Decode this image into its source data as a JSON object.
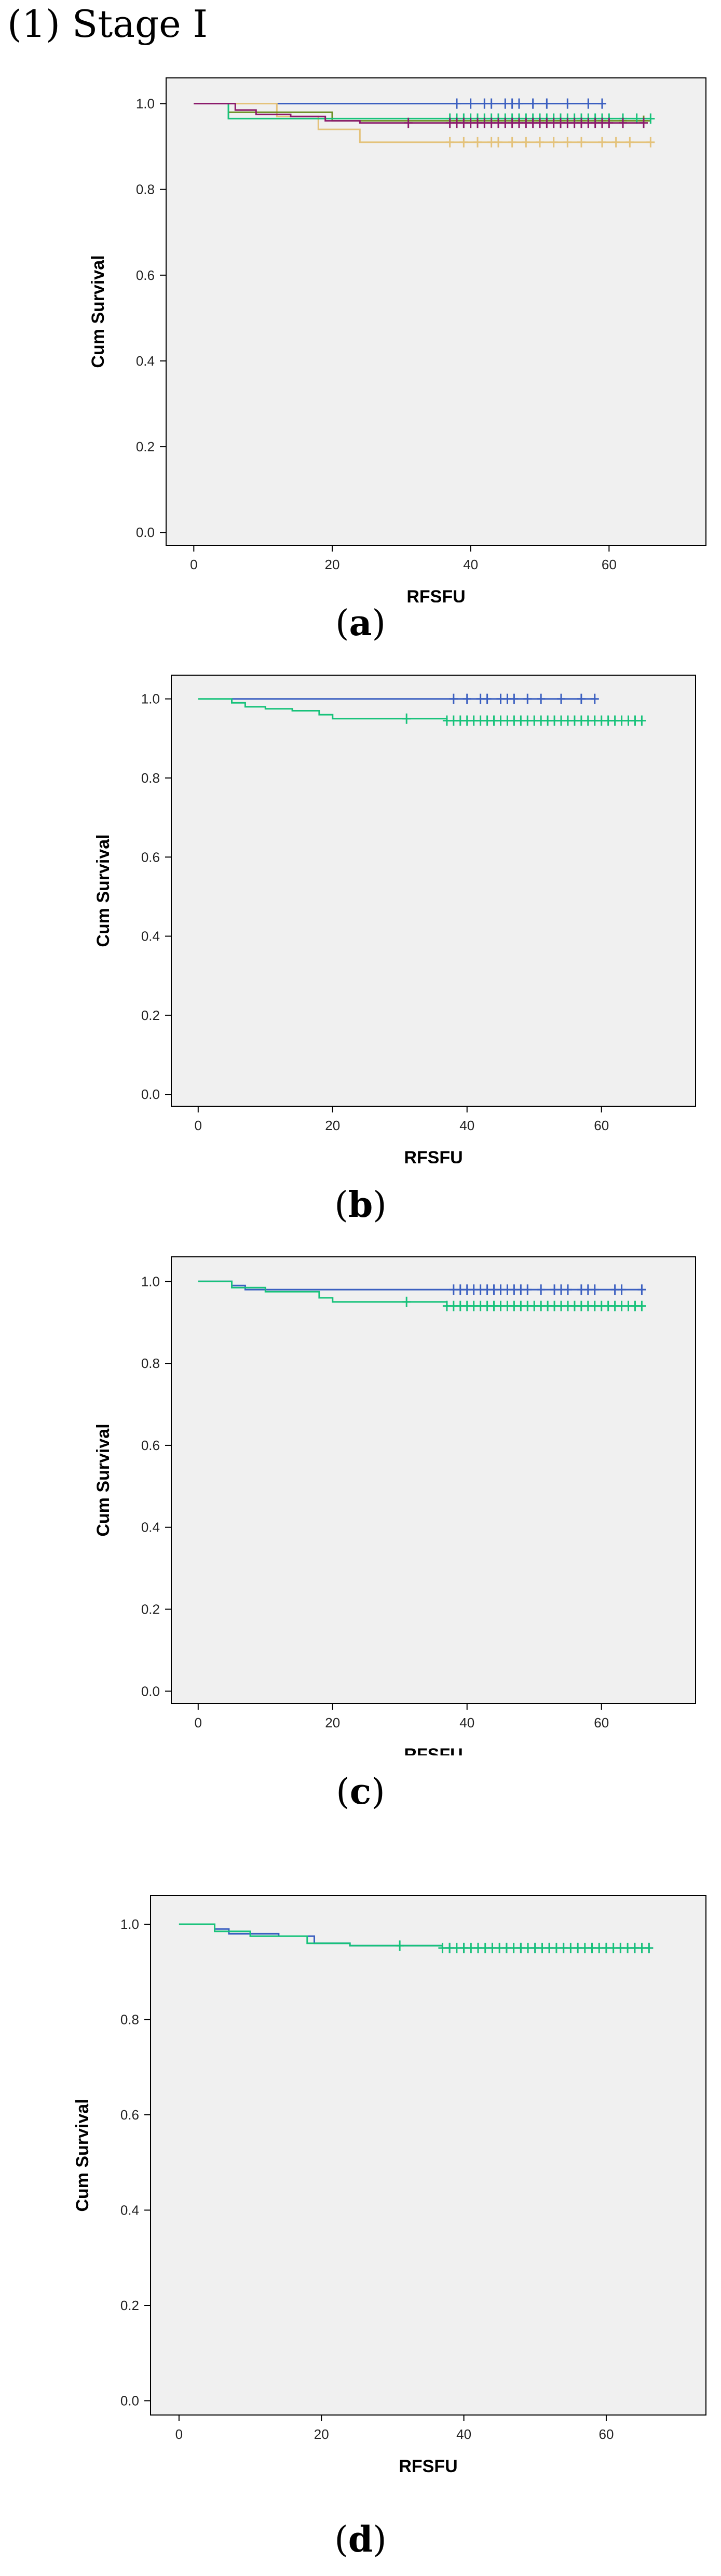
{
  "header": {
    "text": "(1) Stage I"
  },
  "colors": {
    "plot_bg": "#f0f0f0",
    "frame": "#000000",
    "blue": "#3b5fc0",
    "green": "#17c27a",
    "purple": "#8b1a6b",
    "olive": "#6b8e23",
    "tan": "#e4c27a"
  },
  "chart_data": [
    {
      "id": "a",
      "type": "line",
      "caption_letter": "a",
      "xlabel": "RFSFU",
      "ylabel": "Cum Survival",
      "xlim": [
        -4,
        74
      ],
      "ylim": [
        -0.03,
        1.06
      ],
      "xticks": [
        0,
        20,
        40,
        60
      ],
      "yticks": [
        0.0,
        0.2,
        0.4,
        0.6,
        0.8,
        1.0
      ],
      "series": [
        {
          "color": "blue",
          "steps": [
            [
              0,
              1.0
            ],
            [
              59,
              1.0
            ]
          ],
          "censor": [
            38,
            40,
            42,
            43,
            45,
            46,
            47,
            49,
            51,
            54,
            57,
            59
          ]
        },
        {
          "color": "tan",
          "steps": [
            [
              0,
              1.0
            ],
            [
              12,
              1.0
            ],
            [
              12,
              0.97
            ],
            [
              18,
              0.97
            ],
            [
              18,
              0.94
            ],
            [
              24,
              0.94
            ],
            [
              24,
              0.91
            ],
            [
              66,
              0.91
            ]
          ],
          "censor": [
            37,
            39,
            41,
            43,
            44,
            46,
            48,
            50,
            52,
            54,
            56,
            59,
            61,
            63,
            66
          ]
        },
        {
          "color": "olive",
          "steps": [
            [
              0,
              1.0
            ],
            [
              5,
              1.0
            ],
            [
              5,
              0.98
            ],
            [
              20,
              0.98
            ],
            [
              20,
              0.96
            ],
            [
              66,
              0.96
            ]
          ],
          "censor": [
            38,
            41,
            44,
            47,
            50,
            53,
            56,
            59,
            62,
            65
          ]
        },
        {
          "color": "green",
          "steps": [
            [
              0,
              1.0
            ],
            [
              5,
              1.0
            ],
            [
              5,
              0.965
            ],
            [
              66,
              0.965
            ]
          ],
          "censor": [
            37,
            38,
            39,
            40,
            41,
            42,
            43,
            44,
            45,
            46,
            47,
            48,
            49,
            50,
            51,
            52,
            53,
            54,
            55,
            56,
            57,
            58,
            59,
            60,
            62,
            64,
            66
          ]
        },
        {
          "color": "purple",
          "steps": [
            [
              0,
              1.0
            ],
            [
              6,
              1.0
            ],
            [
              6,
              0.985
            ],
            [
              9,
              0.985
            ],
            [
              9,
              0.975
            ],
            [
              14,
              0.975
            ],
            [
              14,
              0.97
            ],
            [
              19,
              0.97
            ],
            [
              19,
              0.96
            ],
            [
              24,
              0.96
            ],
            [
              24,
              0.955
            ],
            [
              65,
              0.955
            ]
          ],
          "censor": [
            31,
            37,
            38,
            39,
            40,
            41,
            42,
            43,
            44,
            45,
            46,
            47,
            48,
            49,
            50,
            51,
            52,
            53,
            54,
            55,
            56,
            57,
            58,
            59,
            60,
            62,
            65
          ]
        }
      ]
    },
    {
      "id": "b",
      "type": "line",
      "caption_letter": "b",
      "xlabel": "RFSFU",
      "ylabel": "Cum Survival",
      "xlim": [
        -4,
        74
      ],
      "ylim": [
        -0.03,
        1.06
      ],
      "xticks": [
        0,
        20,
        40,
        60
      ],
      "yticks": [
        0.0,
        0.2,
        0.4,
        0.6,
        0.8,
        1.0
      ],
      "series": [
        {
          "color": "blue",
          "steps": [
            [
              5,
              1.0
            ],
            [
              59,
              1.0
            ]
          ],
          "censor": [
            38,
            40,
            42,
            43,
            45,
            46,
            47,
            49,
            51,
            54,
            57,
            59
          ]
        },
        {
          "color": "green",
          "steps": [
            [
              0,
              1.0
            ],
            [
              5,
              1.0
            ],
            [
              5,
              0.99
            ],
            [
              7,
              0.99
            ],
            [
              7,
              0.98
            ],
            [
              10,
              0.98
            ],
            [
              10,
              0.975
            ],
            [
              14,
              0.975
            ],
            [
              14,
              0.97
            ],
            [
              18,
              0.97
            ],
            [
              18,
              0.96
            ],
            [
              20,
              0.96
            ],
            [
              20,
              0.95
            ],
            [
              37,
              0.95
            ],
            [
              37,
              0.945
            ],
            [
              66,
              0.945
            ]
          ],
          "censor": [
            31,
            37,
            38,
            39,
            40,
            41,
            42,
            43,
            44,
            45,
            46,
            47,
            48,
            49,
            50,
            51,
            52,
            53,
            54,
            55,
            56,
            57,
            58,
            59,
            60,
            61,
            62,
            63,
            64,
            65,
            66
          ]
        }
      ]
    },
    {
      "id": "c",
      "type": "line",
      "caption_letter": "c",
      "xlabel": "RFSFU",
      "ylabel": "Cum Survival",
      "xlim": [
        -4,
        74
      ],
      "ylim": [
        -0.03,
        1.06
      ],
      "xticks": [
        0,
        20,
        40,
        60
      ],
      "yticks": [
        0.0,
        0.2,
        0.4,
        0.6,
        0.8,
        1.0
      ],
      "series": [
        {
          "color": "blue",
          "steps": [
            [
              0,
              1.0
            ],
            [
              5,
              1.0
            ],
            [
              5,
              0.99
            ],
            [
              7,
              0.99
            ],
            [
              7,
              0.98
            ],
            [
              66,
              0.98
            ]
          ],
          "censor": [
            38,
            39,
            40,
            41,
            42,
            43,
            44,
            45,
            46,
            47,
            48,
            49,
            51,
            53,
            54,
            55,
            57,
            58,
            59,
            62,
            63,
            66
          ]
        },
        {
          "color": "green",
          "steps": [
            [
              0,
              1.0
            ],
            [
              5,
              1.0
            ],
            [
              5,
              0.985
            ],
            [
              10,
              0.985
            ],
            [
              10,
              0.975
            ],
            [
              18,
              0.975
            ],
            [
              18,
              0.96
            ],
            [
              20,
              0.96
            ],
            [
              20,
              0.95
            ],
            [
              37,
              0.95
            ],
            [
              37,
              0.94
            ],
            [
              66,
              0.94
            ]
          ],
          "censor": [
            31,
            37,
            38,
            39,
            40,
            41,
            42,
            43,
            44,
            45,
            46,
            47,
            48,
            49,
            50,
            51,
            52,
            53,
            54,
            55,
            56,
            57,
            58,
            59,
            60,
            61,
            62,
            63,
            64,
            65,
            66
          ]
        }
      ]
    },
    {
      "id": "d",
      "type": "line",
      "caption_letter": "d",
      "xlabel": "RFSFU",
      "ylabel": "Cum Survival",
      "xlim": [
        -4,
        74
      ],
      "ylim": [
        -0.03,
        1.06
      ],
      "xticks": [
        0,
        20,
        40,
        60
      ],
      "yticks": [
        0.0,
        0.2,
        0.4,
        0.6,
        0.8,
        1.0
      ],
      "series": [
        {
          "color": "blue",
          "steps": [
            [
              0,
              1.0
            ],
            [
              5,
              1.0
            ],
            [
              5,
              0.99
            ],
            [
              7,
              0.99
            ],
            [
              7,
              0.98
            ],
            [
              14,
              0.98
            ],
            [
              14,
              0.975
            ],
            [
              19,
              0.975
            ],
            [
              19,
              0.96
            ],
            [
              24,
              0.96
            ],
            [
              24,
              0.955
            ],
            [
              37,
              0.955
            ],
            [
              37,
              0.95
            ],
            [
              66,
              0.95
            ]
          ],
          "censor": [
            38,
            40,
            42,
            44,
            46,
            48,
            50,
            52,
            54,
            56,
            58,
            60,
            62,
            64,
            66
          ]
        },
        {
          "color": "green",
          "steps": [
            [
              0,
              1.0
            ],
            [
              5,
              1.0
            ],
            [
              5,
              0.985
            ],
            [
              10,
              0.985
            ],
            [
              10,
              0.975
            ],
            [
              18,
              0.975
            ],
            [
              18,
              0.96
            ],
            [
              24,
              0.96
            ],
            [
              24,
              0.955
            ],
            [
              37,
              0.955
            ],
            [
              37,
              0.95
            ],
            [
              66,
              0.95
            ]
          ],
          "censor": [
            31,
            37,
            38,
            39,
            40,
            41,
            42,
            43,
            44,
            45,
            46,
            47,
            48,
            49,
            50,
            51,
            52,
            53,
            54,
            55,
            56,
            57,
            58,
            59,
            60,
            61,
            62,
            63,
            64,
            65,
            66
          ]
        }
      ]
    }
  ]
}
